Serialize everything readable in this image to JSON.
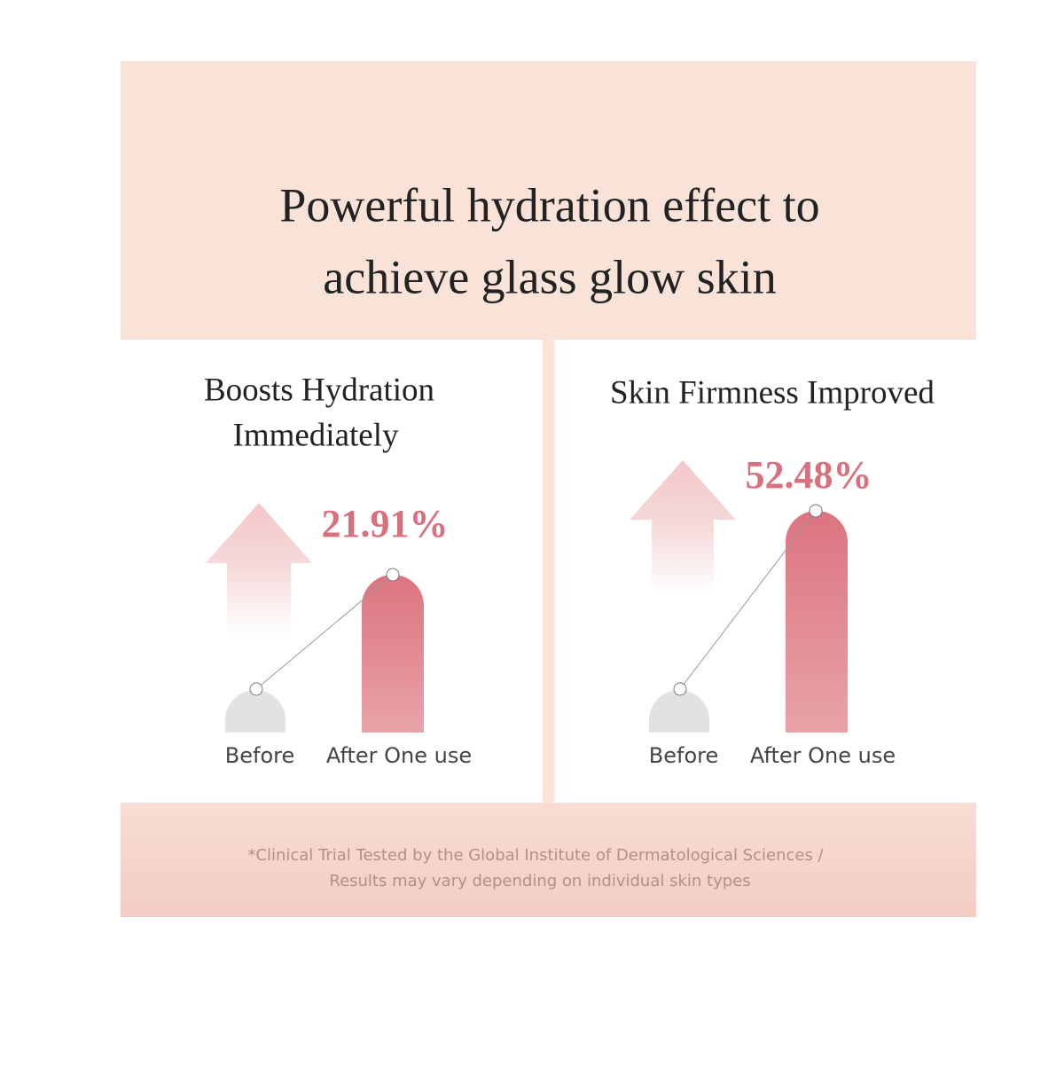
{
  "header": {
    "title": [
      "Powerful hydration effect to",
      "achieve glass glow skin"
    ]
  },
  "panels": [
    {
      "heading": [
        "Boosts Hydration",
        "Immediately"
      ],
      "value_label": "21.91%",
      "labels": [
        "Before",
        "After One use"
      ]
    },
    {
      "heading": [
        "Skin Firmness Improved"
      ],
      "value_label": "52.48%",
      "labels": [
        "Before",
        "After One use"
      ]
    }
  ],
  "footnote": [
    "*Clinical Trial Tested by the Global Institute of Dermatological Sciences /",
    "Results may vary depending on individual skin types"
  ]
}
